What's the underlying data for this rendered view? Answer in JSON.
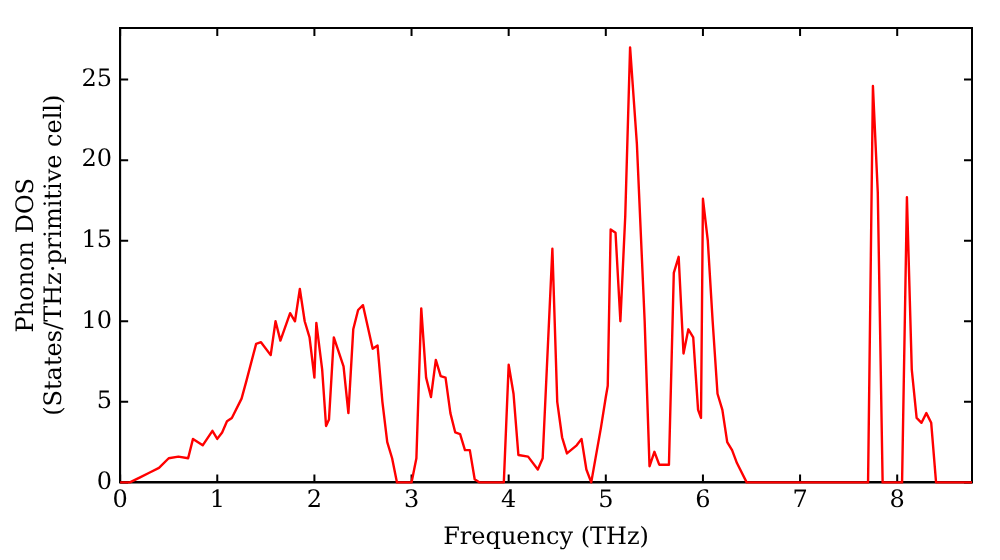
{
  "chart_data": {
    "type": "line",
    "xlabel": "Frequency (THz)",
    "ylabel": "Phonon DOS\n(States/THz·primitive cell)",
    "xlim": [
      0,
      8.77
    ],
    "ylim": [
      0,
      28.2
    ],
    "xticks": [
      0,
      1,
      2,
      3,
      4,
      5,
      6,
      7,
      8
    ],
    "yticks": [
      0,
      5,
      10,
      15,
      20,
      25
    ],
    "grid": false,
    "legend": false,
    "marker": "none",
    "line_style": "solid",
    "series": [
      {
        "color": "#ff0000",
        "x": [
          0,
          0.1,
          0.2,
          0.3,
          0.4,
          0.5,
          0.6,
          0.7,
          0.75,
          0.85,
          0.95,
          1.0,
          1.05,
          1.1,
          1.15,
          1.25,
          1.3,
          1.4,
          1.45,
          1.55,
          1.6,
          1.65,
          1.75,
          1.8,
          1.85,
          1.9,
          1.95,
          2.0,
          2.02,
          2.08,
          2.12,
          2.15,
          2.2,
          2.3,
          2.35,
          2.4,
          2.45,
          2.5,
          2.6,
          2.65,
          2.7,
          2.75,
          2.8,
          2.85,
          3.0,
          3.05,
          3.1,
          3.15,
          3.2,
          3.25,
          3.3,
          3.35,
          3.4,
          3.45,
          3.5,
          3.55,
          3.6,
          3.65,
          3.7,
          3.95,
          4.0,
          4.05,
          4.1,
          4.2,
          4.3,
          4.35,
          4.45,
          4.5,
          4.55,
          4.6,
          4.7,
          4.75,
          4.8,
          4.85,
          4.95,
          5.0,
          5.02,
          5.05,
          5.1,
          5.15,
          5.2,
          5.25,
          5.32,
          5.4,
          5.45,
          5.5,
          5.55,
          5.65,
          5.7,
          5.75,
          5.8,
          5.85,
          5.9,
          5.95,
          5.98,
          6.0,
          6.05,
          6.1,
          6.15,
          6.2,
          6.25,
          6.3,
          6.35,
          6.45,
          7.7,
          7.75,
          7.8,
          7.85,
          8.05,
          8.1,
          8.15,
          8.2,
          8.25,
          8.3,
          8.35,
          8.4,
          8.77
        ],
        "values": [
          0,
          0,
          0.3,
          0.6,
          0.9,
          1.5,
          1.6,
          1.5,
          2.7,
          2.3,
          3.2,
          2.7,
          3.1,
          3.8,
          4.0,
          5.2,
          6.3,
          8.6,
          8.7,
          7.9,
          10.0,
          8.8,
          10.5,
          10.0,
          12.0,
          10.0,
          9.0,
          6.5,
          9.9,
          7.0,
          3.5,
          3.9,
          9.0,
          7.2,
          4.3,
          9.5,
          10.7,
          11.0,
          8.3,
          8.5,
          5.0,
          2.5,
          1.5,
          0,
          0,
          1.5,
          10.8,
          6.5,
          5.3,
          7.6,
          6.6,
          6.5,
          4.3,
          3.1,
          3.0,
          2.0,
          2.0,
          0.2,
          0,
          0,
          7.3,
          5.5,
          1.7,
          1.6,
          0.8,
          1.5,
          14.5,
          5.0,
          2.8,
          1.8,
          2.3,
          2.7,
          0.8,
          0,
          3.4,
          5.3,
          6.0,
          15.7,
          15.5,
          10.0,
          16.5,
          27,
          21,
          10,
          1.0,
          1.9,
          1.1,
          1.1,
          13.0,
          14.0,
          8.0,
          9.5,
          9.0,
          4.5,
          4.0,
          17.6,
          15,
          10,
          5.5,
          4.5,
          2.5,
          2.0,
          1.2,
          0,
          0,
          24.6,
          18,
          0,
          0,
          17.7,
          7,
          4,
          3.7,
          4.3,
          3.7,
          0,
          0
        ]
      }
    ]
  }
}
